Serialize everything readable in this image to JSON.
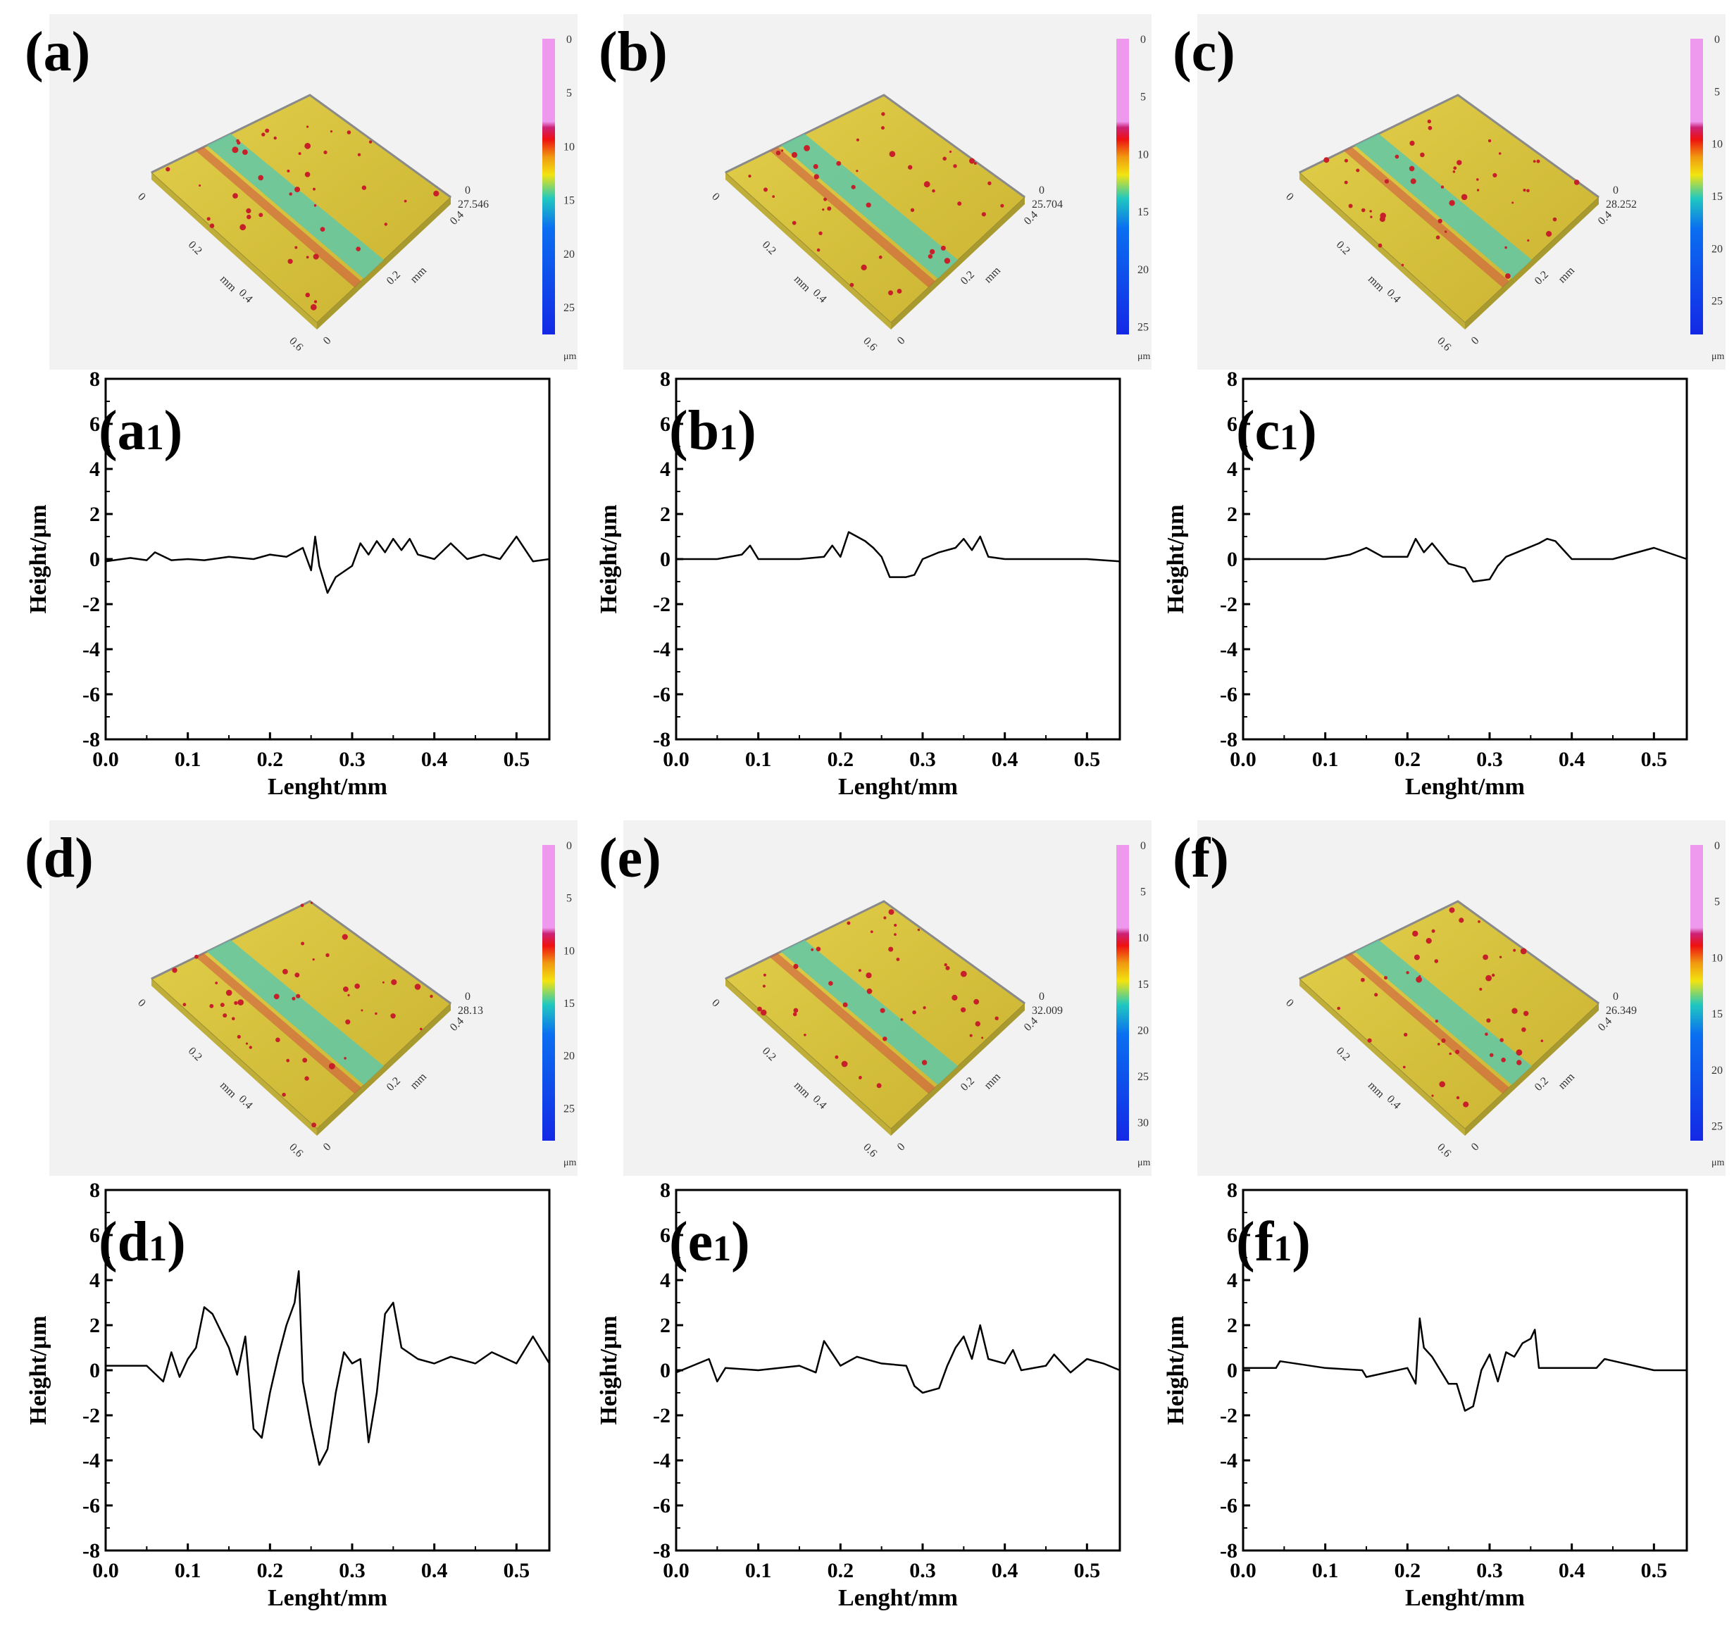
{
  "colors": {
    "surface": "#d6c23c",
    "groove": "#5fc8a8",
    "spot": "#c8202a",
    "bg3d": "#f2f2f2",
    "line": "#000000",
    "cbar": [
      "#ee99ee",
      "#ee99ee",
      "#cc2277",
      "#ee1111",
      "#f09a10",
      "#f2e410",
      "#20c8c0",
      "#0a6ff0",
      "#1428e6"
    ]
  },
  "surfaces": [
    {
      "letter": "(a)",
      "max_label": "27.546",
      "cbar_ticks": [
        "0",
        "5",
        "10",
        "15",
        "20",
        "25"
      ],
      "cbar_max": 27.546,
      "unit": "μm",
      "x_ticks": [
        "0",
        "0.2",
        "0.4",
        "0.6"
      ],
      "y_ticks": [
        "0",
        "0.2",
        "0.4"
      ],
      "axis_unit": "mm",
      "zero_label": "0"
    },
    {
      "letter": "(b)",
      "max_label": "25.704",
      "cbar_ticks": [
        "0",
        "5",
        "10",
        "15",
        "20",
        "25"
      ],
      "cbar_max": 25.704,
      "unit": "μm",
      "x_ticks": [
        "0",
        "0.2",
        "0.4",
        "0.6"
      ],
      "y_ticks": [
        "0",
        "0.2",
        "0.4"
      ],
      "axis_unit": "mm",
      "zero_label": "0"
    },
    {
      "letter": "(c)",
      "max_label": "28.252",
      "cbar_ticks": [
        "0",
        "5",
        "10",
        "15",
        "20",
        "25"
      ],
      "cbar_max": 28.252,
      "unit": "μm",
      "x_ticks": [
        "0",
        "0.2",
        "0.4",
        "0.6"
      ],
      "y_ticks": [
        "0",
        "0.2",
        "0.4"
      ],
      "axis_unit": "mm",
      "zero_label": "0"
    },
    {
      "letter": "(d)",
      "max_label": "28.13",
      "cbar_ticks": [
        "0",
        "5",
        "10",
        "15",
        "20",
        "25"
      ],
      "cbar_max": 28.13,
      "unit": "μm",
      "x_ticks": [
        "0",
        "0.2",
        "0.4",
        "0.6"
      ],
      "y_ticks": [
        "0",
        "0.2",
        "0.4"
      ],
      "axis_unit": "mm",
      "zero_label": "0"
    },
    {
      "letter": "(e)",
      "max_label": "32.009",
      "cbar_ticks": [
        "0",
        "5",
        "10",
        "15",
        "20",
        "25",
        "30"
      ],
      "cbar_max": 32.009,
      "unit": "μm",
      "x_ticks": [
        "0",
        "0.2",
        "0.4",
        "0.6"
      ],
      "y_ticks": [
        "0",
        "0.2",
        "0.4"
      ],
      "axis_unit": "mm",
      "zero_label": "0"
    },
    {
      "letter": "(f)",
      "max_label": "26.349",
      "cbar_ticks": [
        "0",
        "5",
        "10",
        "15",
        "20",
        "25"
      ],
      "cbar_max": 26.349,
      "unit": "μm",
      "x_ticks": [
        "0",
        "0.2",
        "0.4",
        "0.6"
      ],
      "y_ticks": [
        "0",
        "0.2",
        "0.4"
      ],
      "axis_unit": "mm",
      "zero_label": "0"
    }
  ],
  "chart_data": [
    {
      "type": "line",
      "letter": "a",
      "subscript": "1",
      "xlabel": "Lenght/mm",
      "ylabel": "Height/μm",
      "xlim": [
        0,
        0.54
      ],
      "ylim": [
        -8,
        8
      ],
      "x_ticks": [
        0.0,
        0.1,
        0.2,
        0.3,
        0.4,
        0.5
      ],
      "y_ticks": [
        8,
        6,
        4,
        2,
        0,
        -2,
        -4,
        -6,
        -8
      ],
      "x": [
        0,
        0.03,
        0.05,
        0.06,
        0.08,
        0.1,
        0.12,
        0.15,
        0.18,
        0.2,
        0.22,
        0.24,
        0.25,
        0.255,
        0.26,
        0.27,
        0.28,
        0.3,
        0.31,
        0.32,
        0.33,
        0.34,
        0.35,
        0.36,
        0.37,
        0.38,
        0.4,
        0.42,
        0.44,
        0.46,
        0.48,
        0.5,
        0.52,
        0.54
      ],
      "y": [
        -0.1,
        0.05,
        -0.05,
        0.3,
        -0.05,
        0.0,
        -0.05,
        0.1,
        0.0,
        0.2,
        0.1,
        0.5,
        -0.5,
        1.0,
        -0.3,
        -1.5,
        -0.8,
        -0.3,
        0.7,
        0.2,
        0.8,
        0.3,
        0.9,
        0.4,
        0.9,
        0.2,
        0.0,
        0.7,
        0.0,
        0.2,
        0.0,
        1.0,
        -0.1,
        0.0
      ]
    },
    {
      "type": "line",
      "letter": "b",
      "subscript": "1",
      "xlabel": "Lenght/mm",
      "ylabel": "Height/μm",
      "xlim": [
        0,
        0.54
      ],
      "ylim": [
        -8,
        8
      ],
      "x_ticks": [
        0.0,
        0.1,
        0.2,
        0.3,
        0.4,
        0.5
      ],
      "y_ticks": [
        8,
        6,
        4,
        2,
        0,
        -2,
        -4,
        -6,
        -8
      ],
      "x": [
        0,
        0.05,
        0.08,
        0.09,
        0.1,
        0.15,
        0.18,
        0.19,
        0.2,
        0.21,
        0.22,
        0.23,
        0.24,
        0.25,
        0.26,
        0.28,
        0.29,
        0.3,
        0.32,
        0.34,
        0.35,
        0.36,
        0.37,
        0.38,
        0.4,
        0.45,
        0.5,
        0.54
      ],
      "y": [
        0.0,
        0.0,
        0.2,
        0.6,
        0.0,
        0.0,
        0.1,
        0.6,
        0.1,
        1.2,
        1.0,
        0.8,
        0.5,
        0.1,
        -0.8,
        -0.8,
        -0.7,
        0.0,
        0.3,
        0.5,
        0.9,
        0.4,
        1.0,
        0.1,
        0.0,
        0.0,
        0.0,
        -0.1
      ]
    },
    {
      "type": "line",
      "letter": "c",
      "subscript": "1",
      "xlabel": "Lenght/mm",
      "ylabel": "Height/μm",
      "xlim": [
        0,
        0.54
      ],
      "ylim": [
        -8,
        8
      ],
      "x_ticks": [
        0.0,
        0.1,
        0.2,
        0.3,
        0.4,
        0.5
      ],
      "y_ticks": [
        8,
        6,
        4,
        2,
        0,
        -2,
        -4,
        -6,
        -8
      ],
      "x": [
        0,
        0.05,
        0.1,
        0.13,
        0.15,
        0.17,
        0.2,
        0.21,
        0.22,
        0.23,
        0.25,
        0.27,
        0.28,
        0.3,
        0.31,
        0.32,
        0.34,
        0.36,
        0.37,
        0.38,
        0.4,
        0.45,
        0.5,
        0.54
      ],
      "y": [
        0.0,
        0.0,
        0.0,
        0.2,
        0.5,
        0.1,
        0.1,
        0.9,
        0.3,
        0.7,
        -0.2,
        -0.4,
        -1.0,
        -0.9,
        -0.3,
        0.1,
        0.4,
        0.7,
        0.9,
        0.8,
        0.0,
        0.0,
        0.5,
        0.0
      ]
    },
    {
      "type": "line",
      "letter": "d",
      "subscript": "1",
      "xlabel": "Lenght/mm",
      "ylabel": "Height/μm",
      "xlim": [
        0,
        0.54
      ],
      "ylim": [
        -8,
        8
      ],
      "x_ticks": [
        0.0,
        0.1,
        0.2,
        0.3,
        0.4,
        0.5
      ],
      "y_ticks": [
        8,
        6,
        4,
        2,
        0,
        -2,
        -4,
        -6,
        -8
      ],
      "x": [
        0,
        0.05,
        0.07,
        0.08,
        0.09,
        0.1,
        0.11,
        0.12,
        0.13,
        0.15,
        0.16,
        0.17,
        0.18,
        0.19,
        0.2,
        0.21,
        0.22,
        0.23,
        0.235,
        0.24,
        0.25,
        0.26,
        0.27,
        0.28,
        0.29,
        0.3,
        0.31,
        0.32,
        0.33,
        0.34,
        0.35,
        0.36,
        0.38,
        0.4,
        0.42,
        0.45,
        0.47,
        0.5,
        0.52,
        0.54
      ],
      "y": [
        0.2,
        0.2,
        -0.5,
        0.8,
        -0.3,
        0.5,
        1.0,
        2.8,
        2.5,
        1.0,
        -0.2,
        1.5,
        -2.6,
        -3.0,
        -1.0,
        0.6,
        2.0,
        3.0,
        4.4,
        -0.5,
        -2.5,
        -4.2,
        -3.5,
        -1.0,
        0.8,
        0.3,
        0.5,
        -3.2,
        -1.0,
        2.5,
        3.0,
        1.0,
        0.5,
        0.3,
        0.6,
        0.3,
        0.8,
        0.3,
        1.5,
        0.3
      ]
    },
    {
      "type": "line",
      "letter": "e",
      "subscript": "1",
      "xlabel": "Lenght/mm",
      "ylabel": "Height/μm",
      "xlim": [
        0,
        0.54
      ],
      "ylim": [
        -8,
        8
      ],
      "x_ticks": [
        0.0,
        0.1,
        0.2,
        0.3,
        0.4,
        0.5
      ],
      "y_ticks": [
        8,
        6,
        4,
        2,
        0,
        -2,
        -4,
        -6,
        -8
      ],
      "x": [
        0,
        0.02,
        0.04,
        0.05,
        0.06,
        0.1,
        0.15,
        0.17,
        0.18,
        0.2,
        0.22,
        0.25,
        0.28,
        0.29,
        0.3,
        0.32,
        0.33,
        0.34,
        0.35,
        0.36,
        0.37,
        0.38,
        0.4,
        0.41,
        0.42,
        0.45,
        0.46,
        0.48,
        0.5,
        0.52,
        0.54
      ],
      "y": [
        -0.1,
        0.2,
        0.5,
        -0.5,
        0.1,
        0.0,
        0.2,
        -0.1,
        1.3,
        0.2,
        0.6,
        0.3,
        0.2,
        -0.7,
        -1.0,
        -0.8,
        0.2,
        1.0,
        1.5,
        0.5,
        2.0,
        0.5,
        0.3,
        0.9,
        0.0,
        0.2,
        0.7,
        -0.1,
        0.5,
        0.3,
        0.0
      ]
    },
    {
      "type": "line",
      "letter": "f",
      "subscript": "1",
      "xlabel": "Lenght/mm",
      "ylabel": "Height/μm",
      "xlim": [
        0,
        0.54
      ],
      "ylim": [
        -8,
        8
      ],
      "x_ticks": [
        0.0,
        0.1,
        0.2,
        0.3,
        0.4,
        0.5
      ],
      "y_ticks": [
        8,
        6,
        4,
        2,
        0,
        -2,
        -4,
        -6,
        -8
      ],
      "x": [
        0,
        0.04,
        0.045,
        0.1,
        0.145,
        0.15,
        0.2,
        0.21,
        0.215,
        0.22,
        0.23,
        0.24,
        0.25,
        0.26,
        0.27,
        0.28,
        0.29,
        0.3,
        0.31,
        0.32,
        0.33,
        0.34,
        0.35,
        0.355,
        0.36,
        0.4,
        0.43,
        0.44,
        0.5,
        0.54
      ],
      "y": [
        0.1,
        0.1,
        0.4,
        0.1,
        0.0,
        -0.3,
        0.1,
        -0.6,
        2.3,
        1.0,
        0.6,
        0.0,
        -0.6,
        -0.6,
        -1.8,
        -1.6,
        0.0,
        0.7,
        -0.5,
        0.8,
        0.6,
        1.2,
        1.4,
        1.8,
        0.1,
        0.1,
        0.1,
        0.5,
        0.0,
        0.0
      ]
    }
  ]
}
